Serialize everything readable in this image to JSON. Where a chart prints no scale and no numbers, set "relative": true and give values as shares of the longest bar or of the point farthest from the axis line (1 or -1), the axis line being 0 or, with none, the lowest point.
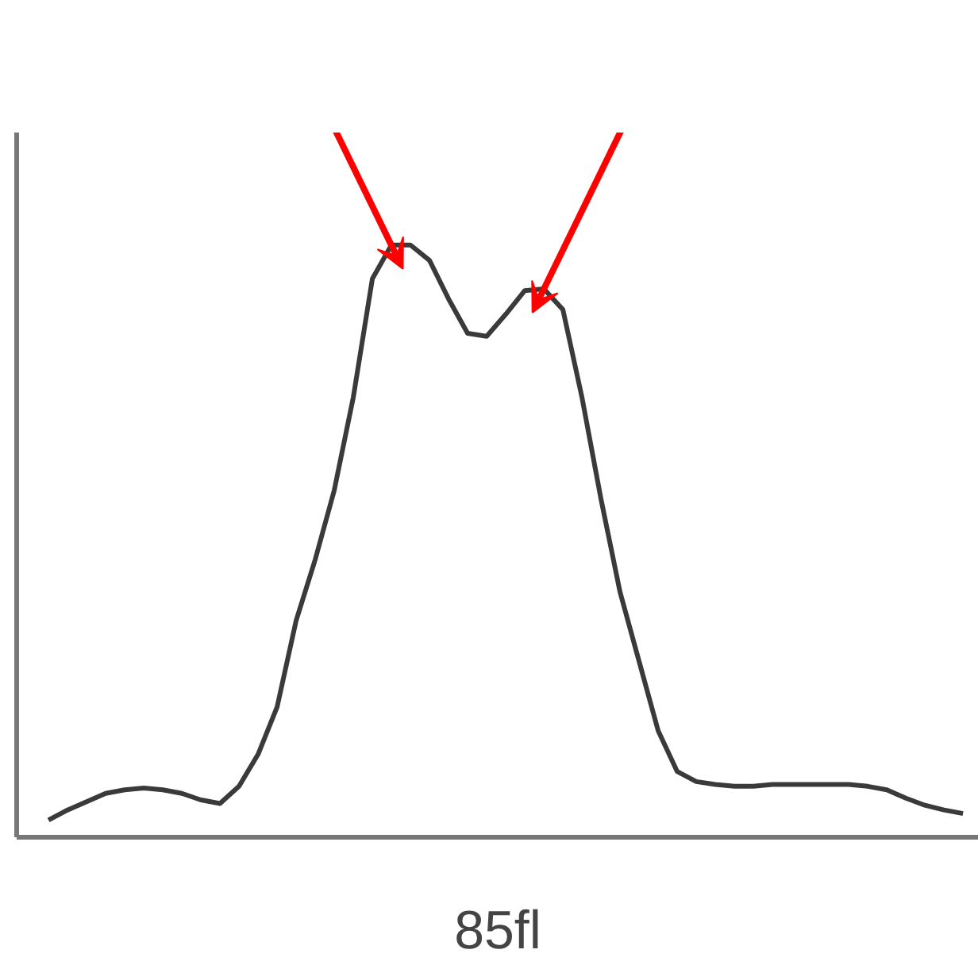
{
  "chart_data": {
    "type": "line",
    "relative": true,
    "xlabel": "85fl",
    "grid": false,
    "line_style": "solid",
    "categories": [
      null,
      null,
      null,
      null,
      null,
      null,
      null,
      null,
      null,
      null,
      null,
      null,
      null,
      null,
      null,
      null,
      null,
      null,
      null,
      null,
      null,
      null,
      null,
      null,
      null,
      null,
      null,
      null,
      null,
      null,
      null,
      null,
      null,
      null,
      null,
      null,
      null,
      null,
      null,
      null,
      null,
      null,
      null,
      null,
      null,
      null,
      null,
      null,
      null
    ],
    "series": [
      {
        "color": "#3a3a3a",
        "values": [
          0.029,
          0.046,
          0.06,
          0.074,
          0.08,
          0.083,
          0.08,
          0.074,
          0.063,
          0.057,
          0.086,
          0.14,
          0.22,
          0.366,
          0.469,
          0.586,
          0.743,
          0.943,
          1,
          1,
          0.974,
          0.909,
          0.851,
          0.846,
          0.883,
          0.923,
          0.926,
          0.891,
          0.743,
          0.571,
          0.414,
          0.297,
          0.18,
          0.111,
          0.094,
          0.089,
          0.086,
          0.086,
          0.089,
          0.089,
          0.089,
          0.089,
          0.089,
          0.086,
          0.08,
          0.066,
          0.054,
          0.046,
          0.04
        ]
      }
    ]
  }
}
